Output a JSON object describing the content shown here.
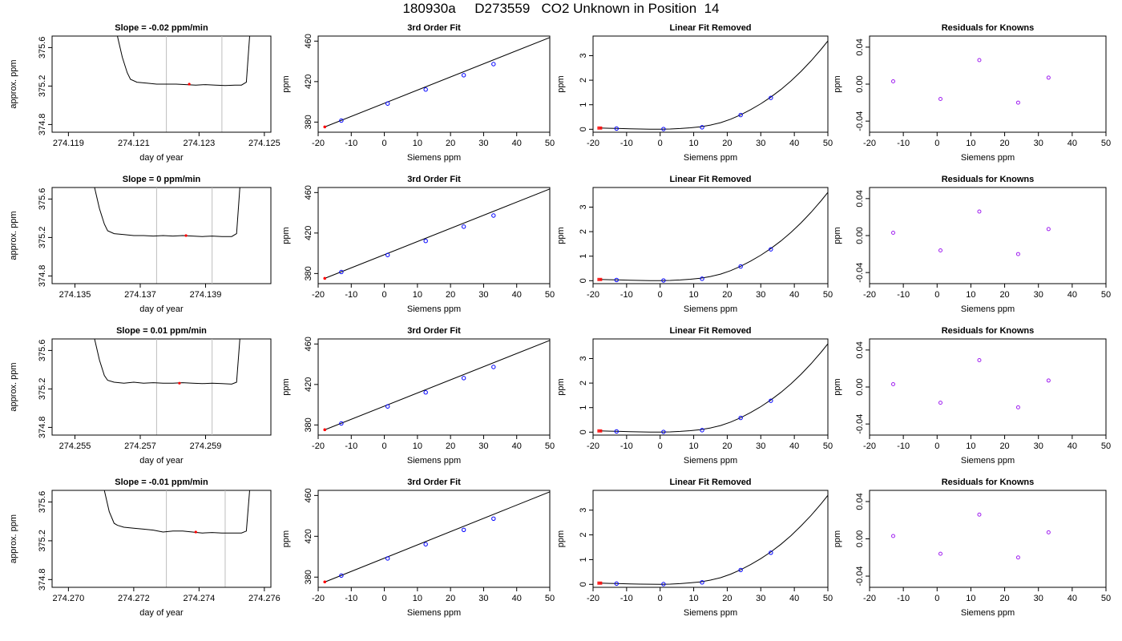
{
  "header": {
    "title": "180930a     D273559   CO2 Unknown in Position  14"
  },
  "colors": {
    "fit_line": "#000000",
    "knowns": "#0000ff",
    "unknown": "#ff0000",
    "residual": "#a020f0",
    "window_marker": "#bebebe",
    "frame": "#000000"
  },
  "panel_titles": {
    "fit": "3rd Order Fit",
    "linear_removed": "Linear Fit Removed",
    "residuals": "Residuals for Knowns"
  },
  "axis_labels": {
    "trace_x": "day of year",
    "trace_y": "approx. ppm",
    "siemens_x": "Siemens ppm",
    "ppm_y": "ppm"
  },
  "chart_data": [
    {
      "type": "line",
      "panel": "trace",
      "title": "Slope =  -0.02  ppm/min",
      "xlabel": "day of year",
      "ylabel": "approx. ppm",
      "xlim": [
        274.1185,
        274.1252
      ],
      "ylim": [
        374.72,
        375.72
      ],
      "xticks": [
        274.119,
        274.121,
        274.123,
        274.125
      ],
      "xtick_labels": [
        "274.119",
        "274.121",
        "274.123",
        "274.125"
      ],
      "yticks": [
        374.8,
        375.2,
        375.6
      ],
      "ytick_labels": [
        "374.8",
        "375.2",
        "375.6"
      ],
      "window_markers": [
        274.122,
        274.1237
      ],
      "unknown_point": {
        "x": 274.1227,
        "y": 375.22
      },
      "trace": {
        "x": [
          274.1205,
          274.12065,
          274.1208,
          274.1209,
          274.1211,
          274.1214,
          274.1217,
          274.122,
          274.1223,
          274.1226,
          274.1229,
          274.1232,
          274.1235,
          274.1238,
          274.1241,
          274.1243,
          274.12445,
          274.12455
        ],
        "y": [
          375.72,
          375.5,
          375.34,
          375.27,
          375.24,
          375.23,
          375.22,
          375.22,
          375.22,
          375.215,
          375.21,
          375.215,
          375.21,
          375.205,
          375.21,
          375.21,
          375.24,
          375.72
        ]
      },
      "grid": false
    },
    {
      "type": "scatter",
      "panel": "fit",
      "title": "3rd Order Fit",
      "xlabel": "Siemens ppm",
      "ylabel": "ppm",
      "xlim": [
        -20,
        50
      ],
      "ylim": [
        370,
        465
      ],
      "xticks": [
        -20,
        -10,
        0,
        10,
        20,
        30,
        40,
        50
      ],
      "yticks": [
        380,
        420,
        460
      ],
      "knowns": {
        "x": [
          -13,
          1,
          12.5,
          24,
          33
        ],
        "y": [
          381.5,
          398.3,
          412.2,
          426.3,
          437.3
        ]
      },
      "unknown_point": {
        "x": -18,
        "y": 375.22
      },
      "fit_curve": {
        "x": [
          -18,
          50
        ],
        "y": [
          375.2,
          463.6
        ]
      },
      "grid": false
    },
    {
      "type": "scatter",
      "panel": "linear_removed",
      "title": "Linear Fit Removed",
      "xlabel": "Siemens ppm",
      "ylabel": "ppm",
      "xlim": [
        -20,
        50
      ],
      "ylim": [
        -0.12,
        3.8
      ],
      "xticks": [
        -20,
        -10,
        0,
        10,
        20,
        30,
        40,
        50
      ],
      "yticks": [
        0,
        1,
        2,
        3
      ],
      "knowns": {
        "x": [
          -13,
          1,
          12.5,
          24,
          33
        ],
        "y": [
          0.03,
          0.01,
          0.08,
          0.58,
          1.28
        ]
      },
      "unknown_point": {
        "x": -18,
        "y": 0.05
      },
      "fit_curve": {
        "x": [
          -18,
          -15,
          -12,
          -9,
          -6,
          -3,
          0,
          3,
          6,
          9,
          12,
          15,
          18,
          21,
          24,
          27,
          30,
          33,
          36,
          39,
          42,
          45,
          48,
          50
        ],
        "y": [
          0.05,
          0.04,
          0.03,
          0.02,
          0.01,
          0.005,
          0.0,
          0.01,
          0.03,
          0.06,
          0.1,
          0.17,
          0.27,
          0.41,
          0.59,
          0.8,
          1.04,
          1.31,
          1.62,
          1.97,
          2.36,
          2.79,
          3.26,
          3.6
        ]
      },
      "grid": false
    },
    {
      "type": "scatter",
      "panel": "residuals",
      "title": "Residuals for Knowns",
      "xlabel": "Siemens ppm",
      "ylabel": "ppm",
      "xlim": [
        -20,
        50
      ],
      "ylim": [
        -0.052,
        0.052
      ],
      "xticks": [
        -20,
        -10,
        0,
        10,
        20,
        30,
        40,
        50
      ],
      "yticks": [
        -0.04,
        0.0,
        0.04
      ],
      "ytick_labels": [
        "-0.04",
        "0.00",
        "0.04"
      ],
      "residuals": {
        "x": [
          -13,
          1,
          12.5,
          24,
          33
        ],
        "y": [
          0.003,
          -0.016,
          0.026,
          -0.02,
          0.007
        ]
      },
      "grid": false
    },
    {
      "type": "line",
      "panel": "trace",
      "title": "Slope =  0  ppm/min",
      "xlabel": "day of year",
      "ylabel": "approx. ppm",
      "xlim": [
        274.1343,
        274.141
      ],
      "ylim": [
        374.72,
        375.72
      ],
      "xticks": [
        274.135,
        274.137,
        274.139
      ],
      "xtick_labels": [
        "274.135",
        "274.137",
        "274.139"
      ],
      "yticks": [
        374.8,
        375.2,
        375.6
      ],
      "ytick_labels": [
        "374.8",
        "375.2",
        "375.6"
      ],
      "window_markers": [
        274.1375,
        274.1392
      ],
      "unknown_point": {
        "x": 274.1384,
        "y": 375.22
      },
      "trace": {
        "x": [
          274.1356,
          274.13575,
          274.1359,
          274.136,
          274.1362,
          274.1365,
          274.1368,
          274.1371,
          274.1374,
          274.1377,
          274.138,
          274.1383,
          274.1386,
          274.1389,
          274.1392,
          274.1395,
          274.1398,
          274.13995,
          274.14005
        ],
        "y": [
          375.72,
          375.5,
          375.34,
          375.27,
          375.24,
          375.23,
          375.22,
          375.22,
          375.215,
          375.22,
          375.215,
          375.22,
          375.215,
          375.21,
          375.215,
          375.21,
          375.21,
          375.24,
          375.72
        ]
      },
      "grid": false
    },
    {
      "type": "scatter",
      "panel": "fit",
      "title": "3rd Order Fit",
      "xlabel": "Siemens ppm",
      "ylabel": "ppm",
      "xlim": [
        -20,
        50
      ],
      "ylim": [
        370,
        465
      ],
      "xticks": [
        -20,
        -10,
        0,
        10,
        20,
        30,
        40,
        50
      ],
      "yticks": [
        380,
        420,
        460
      ],
      "knowns": {
        "x": [
          -13,
          1,
          12.5,
          24,
          33
        ],
        "y": [
          381.5,
          398.3,
          412.2,
          426.3,
          437.3
        ]
      },
      "unknown_point": {
        "x": -18,
        "y": 375.22
      },
      "fit_curve": {
        "x": [
          -18,
          50
        ],
        "y": [
          375.2,
          463.6
        ]
      },
      "grid": false
    },
    {
      "type": "scatter",
      "panel": "linear_removed",
      "title": "Linear Fit Removed",
      "xlabel": "Siemens ppm",
      "ylabel": "ppm",
      "xlim": [
        -20,
        50
      ],
      "ylim": [
        -0.12,
        3.8
      ],
      "xticks": [
        -20,
        -10,
        0,
        10,
        20,
        30,
        40,
        50
      ],
      "yticks": [
        0,
        1,
        2,
        3
      ],
      "knowns": {
        "x": [
          -13,
          1,
          12.5,
          24,
          33
        ],
        "y": [
          0.03,
          0.01,
          0.08,
          0.58,
          1.28
        ]
      },
      "unknown_point": {
        "x": -18,
        "y": 0.05
      },
      "fit_curve": {
        "x": [
          -18,
          -15,
          -12,
          -9,
          -6,
          -3,
          0,
          3,
          6,
          9,
          12,
          15,
          18,
          21,
          24,
          27,
          30,
          33,
          36,
          39,
          42,
          45,
          48,
          50
        ],
        "y": [
          0.05,
          0.04,
          0.03,
          0.02,
          0.01,
          0.005,
          0.0,
          0.01,
          0.03,
          0.06,
          0.1,
          0.17,
          0.27,
          0.41,
          0.59,
          0.8,
          1.04,
          1.31,
          1.62,
          1.97,
          2.36,
          2.79,
          3.26,
          3.6
        ]
      },
      "grid": false
    },
    {
      "type": "scatter",
      "panel": "residuals",
      "title": "Residuals for Knowns",
      "xlabel": "Siemens ppm",
      "ylabel": "ppm",
      "xlim": [
        -20,
        50
      ],
      "ylim": [
        -0.052,
        0.052
      ],
      "xticks": [
        -20,
        -10,
        0,
        10,
        20,
        30,
        40,
        50
      ],
      "yticks": [
        -0.04,
        0.0,
        0.04
      ],
      "ytick_labels": [
        "-0.04",
        "0.00",
        "0.04"
      ],
      "residuals": {
        "x": [
          -13,
          1,
          12.5,
          24,
          33
        ],
        "y": [
          0.003,
          -0.016,
          0.026,
          -0.02,
          0.007
        ]
      },
      "grid": false
    },
    {
      "type": "line",
      "panel": "trace",
      "title": "Slope =  0.01  ppm/min",
      "xlabel": "day of year",
      "ylabel": "approx. ppm",
      "xlim": [
        274.2543,
        274.261
      ],
      "ylim": [
        374.72,
        375.72
      ],
      "xticks": [
        274.255,
        274.257,
        274.259
      ],
      "xtick_labels": [
        "274.255",
        "274.257",
        "274.259"
      ],
      "yticks": [
        374.8,
        375.2,
        375.6
      ],
      "ytick_labels": [
        "374.8",
        "375.2",
        "375.6"
      ],
      "window_markers": [
        274.2575,
        274.2592
      ],
      "unknown_point": {
        "x": 274.2582,
        "y": 375.26
      },
      "trace": {
        "x": [
          274.2556,
          274.25575,
          274.2559,
          274.256,
          274.2562,
          274.2565,
          274.2568,
          274.2571,
          274.2574,
          274.2577,
          274.258,
          274.2583,
          274.2586,
          274.2589,
          274.2592,
          274.2595,
          274.2598,
          274.25995,
          274.26005
        ],
        "y": [
          375.72,
          375.5,
          375.34,
          375.29,
          375.27,
          375.26,
          375.27,
          375.26,
          375.265,
          375.26,
          375.26,
          375.265,
          375.26,
          375.255,
          375.26,
          375.255,
          375.25,
          375.27,
          375.72
        ]
      },
      "grid": false
    },
    {
      "type": "scatter",
      "panel": "fit",
      "title": "3rd Order Fit",
      "xlabel": "Siemens ppm",
      "ylabel": "ppm",
      "xlim": [
        -20,
        50
      ],
      "ylim": [
        370,
        465
      ],
      "xticks": [
        -20,
        -10,
        0,
        10,
        20,
        30,
        40,
        50
      ],
      "yticks": [
        380,
        420,
        460
      ],
      "knowns": {
        "x": [
          -13,
          1,
          12.5,
          24,
          33
        ],
        "y": [
          381.5,
          398.3,
          412.2,
          426.3,
          437.3
        ]
      },
      "unknown_point": {
        "x": -18,
        "y": 375.26
      },
      "fit_curve": {
        "x": [
          -18,
          50
        ],
        "y": [
          375.2,
          463.6
        ]
      },
      "grid": false
    },
    {
      "type": "scatter",
      "panel": "linear_removed",
      "title": "Linear Fit Removed",
      "xlabel": "Siemens ppm",
      "ylabel": "ppm",
      "xlim": [
        -20,
        50
      ],
      "ylim": [
        -0.12,
        3.8
      ],
      "xticks": [
        -20,
        -10,
        0,
        10,
        20,
        30,
        40,
        50
      ],
      "yticks": [
        0,
        1,
        2,
        3
      ],
      "knowns": {
        "x": [
          -13,
          1,
          12.5,
          24,
          33
        ],
        "y": [
          0.03,
          0.01,
          0.08,
          0.58,
          1.28
        ]
      },
      "unknown_point": {
        "x": -18,
        "y": 0.05
      },
      "fit_curve": {
        "x": [
          -18,
          -15,
          -12,
          -9,
          -6,
          -3,
          0,
          3,
          6,
          9,
          12,
          15,
          18,
          21,
          24,
          27,
          30,
          33,
          36,
          39,
          42,
          45,
          48,
          50
        ],
        "y": [
          0.05,
          0.04,
          0.03,
          0.02,
          0.01,
          0.005,
          0.0,
          0.01,
          0.03,
          0.06,
          0.1,
          0.17,
          0.27,
          0.41,
          0.59,
          0.8,
          1.04,
          1.31,
          1.62,
          1.97,
          2.36,
          2.79,
          3.26,
          3.6
        ]
      },
      "grid": false
    },
    {
      "type": "scatter",
      "panel": "residuals",
      "title": "Residuals for Knowns",
      "xlabel": "Siemens ppm",
      "ylabel": "ppm",
      "xlim": [
        -20,
        50
      ],
      "ylim": [
        -0.052,
        0.052
      ],
      "xticks": [
        -20,
        -10,
        0,
        10,
        20,
        30,
        40,
        50
      ],
      "yticks": [
        -0.04,
        0.0,
        0.04
      ],
      "ytick_labels": [
        "-0.04",
        "0.00",
        "0.04"
      ],
      "residuals": {
        "x": [
          -13,
          1,
          12.5,
          24,
          33
        ],
        "y": [
          0.003,
          -0.017,
          0.029,
          -0.022,
          0.007
        ]
      },
      "grid": false
    },
    {
      "type": "line",
      "panel": "trace",
      "title": "Slope =  -0.01  ppm/min",
      "xlabel": "day of year",
      "ylabel": "approx. ppm",
      "xlim": [
        274.2695,
        274.2762
      ],
      "ylim": [
        374.72,
        375.72
      ],
      "xticks": [
        274.27,
        274.272,
        274.274,
        274.276
      ],
      "xtick_labels": [
        "274.270",
        "274.272",
        "274.274",
        "274.276"
      ],
      "window_markers": [
        274.273,
        274.2748
      ],
      "unknown_point": {
        "x": 274.2739,
        "y": 375.29
      },
      "yticks": [
        374.8,
        375.2,
        375.6
      ],
      "ytick_labels": [
        "374.8",
        "375.2",
        "375.6"
      ],
      "trace": {
        "x": [
          274.2711,
          274.27125,
          274.2714,
          274.2715,
          274.2717,
          274.272,
          274.2723,
          274.2726,
          274.2729,
          274.2732,
          274.2735,
          274.2738,
          274.2741,
          274.2744,
          274.2747,
          274.275,
          274.2753,
          274.27545,
          274.27555
        ],
        "y": [
          375.72,
          375.5,
          375.38,
          375.36,
          375.34,
          375.33,
          375.32,
          375.31,
          375.29,
          375.3,
          375.3,
          375.29,
          375.28,
          375.285,
          375.28,
          375.28,
          375.28,
          375.3,
          375.72
        ]
      },
      "grid": false
    },
    {
      "type": "scatter",
      "panel": "fit",
      "title": "3rd Order Fit",
      "xlabel": "Siemens ppm",
      "ylabel": "ppm",
      "xlim": [
        -20,
        50
      ],
      "ylim": [
        370,
        465
      ],
      "xticks": [
        -20,
        -10,
        0,
        10,
        20,
        30,
        40,
        50
      ],
      "yticks": [
        380,
        420,
        460
      ],
      "knowns": {
        "x": [
          -13,
          1,
          12.5,
          24,
          33
        ],
        "y": [
          381.5,
          398.3,
          412.2,
          426.3,
          437.3
        ]
      },
      "unknown_point": {
        "x": -18,
        "y": 375.29
      },
      "fit_curve": {
        "x": [
          -18,
          50
        ],
        "y": [
          375.2,
          463.6
        ]
      },
      "grid": false
    },
    {
      "type": "scatter",
      "panel": "linear_removed",
      "title": "Linear Fit Removed",
      "xlabel": "Siemens ppm",
      "ylabel": "ppm",
      "xlim": [
        -20,
        50
      ],
      "ylim": [
        -0.12,
        3.8
      ],
      "xticks": [
        -20,
        -10,
        0,
        10,
        20,
        30,
        40,
        50
      ],
      "yticks": [
        0,
        1,
        2,
        3
      ],
      "knowns": {
        "x": [
          -13,
          1,
          12.5,
          24,
          33
        ],
        "y": [
          0.03,
          0.01,
          0.08,
          0.58,
          1.28
        ]
      },
      "unknown_point": {
        "x": -18,
        "y": 0.05
      },
      "fit_curve": {
        "x": [
          -18,
          -15,
          -12,
          -9,
          -6,
          -3,
          0,
          3,
          6,
          9,
          12,
          15,
          18,
          21,
          24,
          27,
          30,
          33,
          36,
          39,
          42,
          45,
          48,
          50
        ],
        "y": [
          0.05,
          0.04,
          0.03,
          0.02,
          0.01,
          0.005,
          0.0,
          0.01,
          0.03,
          0.06,
          0.1,
          0.17,
          0.27,
          0.41,
          0.59,
          0.8,
          1.04,
          1.31,
          1.62,
          1.97,
          2.36,
          2.79,
          3.26,
          3.6
        ]
      },
      "grid": false
    },
    {
      "type": "scatter",
      "panel": "residuals",
      "title": "Residuals for Knowns",
      "xlabel": "Siemens ppm",
      "ylabel": "ppm",
      "xlim": [
        -20,
        50
      ],
      "ylim": [
        -0.052,
        0.052
      ],
      "xticks": [
        -20,
        -10,
        0,
        10,
        20,
        30,
        40,
        50
      ],
      "yticks": [
        -0.04,
        0.0,
        0.04
      ],
      "ytick_labels": [
        "-0.04",
        "0.00",
        "0.04"
      ],
      "residuals": {
        "x": [
          -13,
          1,
          12.5,
          24,
          33
        ],
        "y": [
          0.003,
          -0.016,
          0.026,
          -0.02,
          0.007
        ]
      },
      "grid": false
    }
  ]
}
